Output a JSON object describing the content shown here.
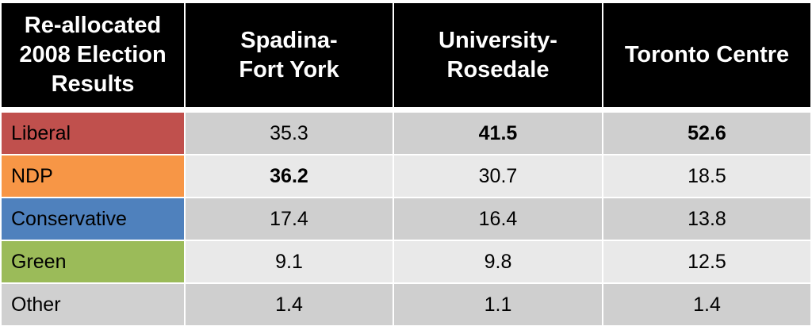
{
  "chart_data": {
    "type": "table",
    "title": "",
    "header": [
      "Re-allocated\n2008 Election\nResults",
      "Spadina-\nFort York",
      "University-\nRosedale",
      "Toronto Centre"
    ],
    "columns": [
      "Spadina-Fort York",
      "University-Rosedale",
      "Toronto Centre"
    ],
    "rows": [
      {
        "label": "Liberal",
        "color": "#c0504d",
        "values": [
          "35.3",
          "41.5",
          "52.6"
        ],
        "bold": [
          false,
          true,
          true
        ]
      },
      {
        "label": "NDP",
        "color": "#f79646",
        "values": [
          "36.2",
          "30.7",
          "18.5"
        ],
        "bold": [
          true,
          false,
          false
        ]
      },
      {
        "label": "Conservative",
        "color": "#4f81bd",
        "values": [
          "17.4",
          "16.4",
          "13.8"
        ],
        "bold": [
          false,
          false,
          false
        ]
      },
      {
        "label": "Green",
        "color": "#9bbb59",
        "values": [
          "9.1",
          "9.8",
          "12.5"
        ],
        "bold": [
          false,
          false,
          false
        ]
      },
      {
        "label": "Other",
        "color": "#d0d0d0",
        "values": [
          "1.4",
          "1.1",
          "1.4"
        ],
        "bold": [
          false,
          false,
          false
        ]
      }
    ],
    "row_shading": [
      "#cfcfcf",
      "#e9e9e9"
    ]
  }
}
